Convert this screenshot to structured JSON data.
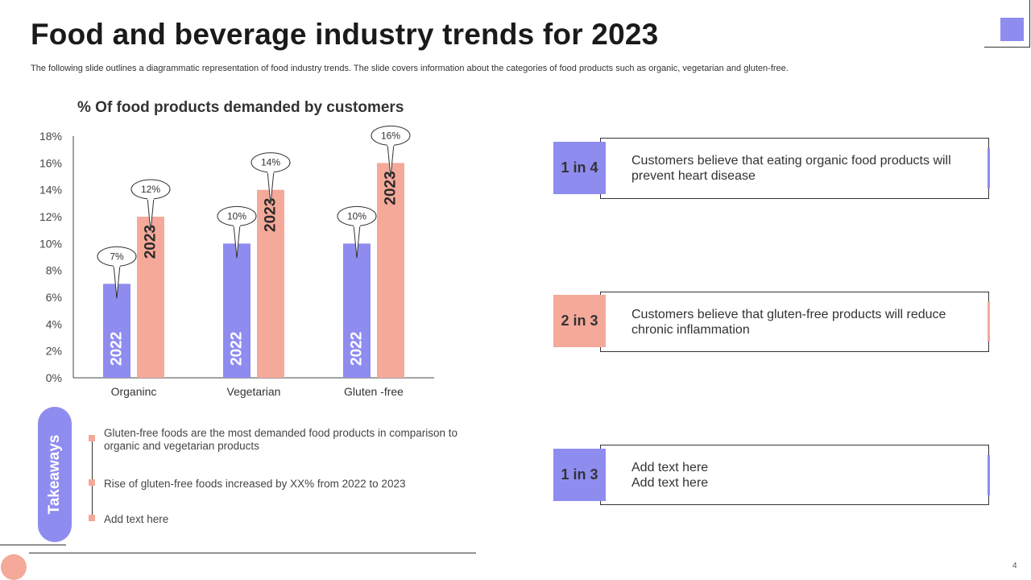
{
  "title": "Food and beverage industry trends for 2023",
  "subtitle": "The following slide outlines a diagrammatic representation of food industry trends. The slide covers information about the categories of food products such as organic, vegetarian and gluten-free.",
  "colors": {
    "purple": "#8f8cf0",
    "salmon": "#f4a99a"
  },
  "chart_data": {
    "type": "bar",
    "title": "% Of food products demanded by customers",
    "categories": [
      "Organinc",
      "Vegetarian",
      "Gluten -free"
    ],
    "series": [
      {
        "name": "2022",
        "values": [
          7,
          10,
          10
        ],
        "color": "#8f8cf0"
      },
      {
        "name": "2023",
        "values": [
          12,
          14,
          16
        ],
        "color": "#f4a99a"
      }
    ],
    "data_labels": [
      [
        "7%",
        "10%",
        "10%"
      ],
      [
        "12%",
        "14%",
        "16%"
      ]
    ],
    "ylim": [
      0,
      18
    ],
    "yticks": [
      0,
      2,
      4,
      6,
      8,
      10,
      12,
      14,
      16,
      18
    ],
    "ytick_labels": [
      "0%",
      "2%",
      "4%",
      "6%",
      "8%",
      "10%",
      "12%",
      "14%",
      "16%",
      "18%"
    ],
    "xlabel": "",
    "ylabel": ""
  },
  "takeaways": {
    "label": "Takeaways",
    "items": [
      "Gluten-free foods are the most demanded food products in comparison to organic and vegetarian products",
      "Rise of gluten-free foods increased by XX%  from 2022 to 2023",
      "Add text here"
    ]
  },
  "stats": [
    {
      "label": "1 in 4",
      "text": "Customers believe that eating organic food products will prevent heart disease",
      "color": "#8f8cf0"
    },
    {
      "label": "2 in 3",
      "text": "Customers believe that gluten-free products will reduce chronic inflammation",
      "color": "#f4a99a"
    },
    {
      "label": "1 in 3",
      "text": "Add text here Add text here",
      "color": "#8f8cf0"
    }
  ],
  "page_number": "4"
}
